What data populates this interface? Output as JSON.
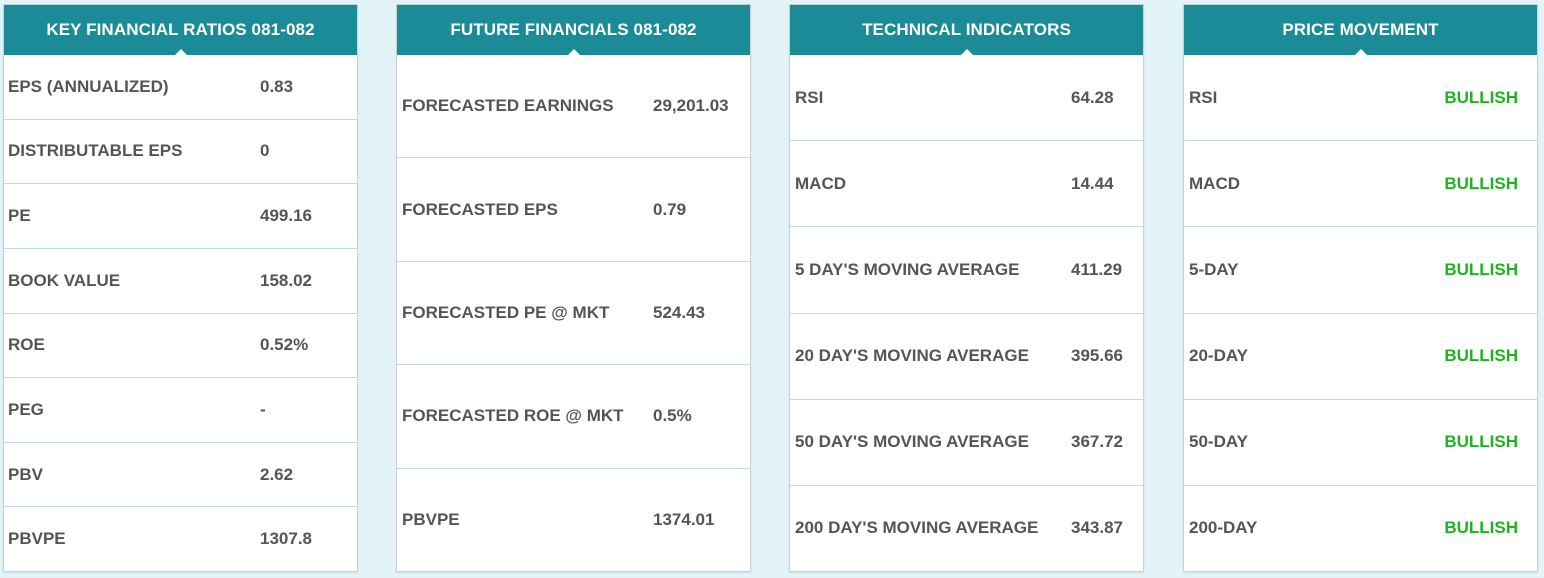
{
  "panels": [
    {
      "title": "KEY FINANCIAL RATIOS 081-082",
      "rows": [
        {
          "label": "EPS (ANNUALIZED)",
          "value": "0.83"
        },
        {
          "label": "DISTRIBUTABLE EPS",
          "value": "0"
        },
        {
          "label": "PE",
          "value": "499.16"
        },
        {
          "label": "BOOK VALUE",
          "value": "158.02"
        },
        {
          "label": "ROE",
          "value": "0.52%"
        },
        {
          "label": "PEG",
          "value": "-"
        },
        {
          "label": "PBV",
          "value": "2.62"
        },
        {
          "label": "PBVPE",
          "value": "1307.8"
        }
      ]
    },
    {
      "title": "FUTURE FINANCIALS 081-082",
      "rows": [
        {
          "label": "FORECASTED EARNINGS",
          "value": "29,201.03"
        },
        {
          "label": "FORECASTED EPS",
          "value": "0.79"
        },
        {
          "label": "FORECASTED PE @ MKT",
          "value": "524.43"
        },
        {
          "label": "FORECASTED ROE @ MKT",
          "value": "0.5%"
        },
        {
          "label": "PBVPE",
          "value": "1374.01"
        }
      ]
    },
    {
      "title": "TECHNICAL INDICATORS",
      "rows": [
        {
          "label": "RSI",
          "value": "64.28"
        },
        {
          "label": "MACD",
          "value": "14.44"
        },
        {
          "label": "5 DAY'S MOVING AVERAGE",
          "value": "411.29"
        },
        {
          "label": "20 DAY'S MOVING AVERAGE",
          "value": "395.66"
        },
        {
          "label": "50 DAY'S MOVING AVERAGE",
          "value": "367.72"
        },
        {
          "label": "200 DAY'S MOVING AVERAGE",
          "value": "343.87"
        }
      ]
    },
    {
      "title": "PRICE MOVEMENT",
      "rows": [
        {
          "label": "RSI",
          "value": "BULLISH"
        },
        {
          "label": "MACD",
          "value": "BULLISH"
        },
        {
          "label": "5-DAY",
          "value": "BULLISH"
        },
        {
          "label": "20-DAY",
          "value": "BULLISH"
        },
        {
          "label": "50-DAY",
          "value": "BULLISH"
        },
        {
          "label": "200-DAY",
          "value": "BULLISH"
        }
      ]
    }
  ],
  "colors": {
    "header": "#1b8b97",
    "background": "#e2f4f8",
    "text": "#555555",
    "bullish": "#1fb31f"
  }
}
